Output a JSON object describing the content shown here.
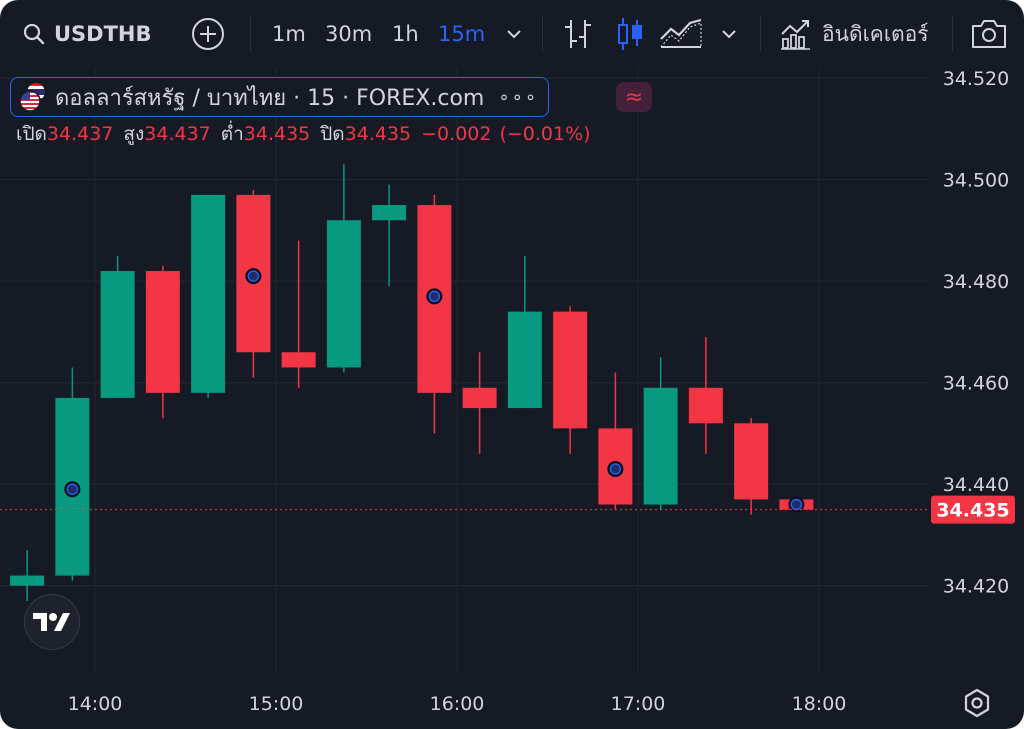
{
  "toolbar": {
    "search_icon": "search-icon",
    "symbol": "USDTHB",
    "add_icon": "plus-circle-icon",
    "intervals": [
      "1m",
      "30m",
      "1h",
      "15m"
    ],
    "active_interval": "15m",
    "chart_type_icons": [
      "bar-chart-icon",
      "candles-icon",
      "area-chart-icon"
    ],
    "dropdown_icon": "chevron-down-icon",
    "indicators_label": "อินดิเคเตอร์",
    "indicators_icon": "indicators-icon",
    "camera_icon": "camera-icon"
  },
  "legend": {
    "title": "ดอลลาร์สหรัฐ / บาทไทย · 15 · FOREX.com",
    "more": "∘∘∘",
    "approx_badge": "≈",
    "open_label": "เปิด",
    "open": "34.437",
    "high_label": "สูง",
    "high": "34.437",
    "low_label": "ต่ำ",
    "low": "34.435",
    "close_label": "ปิด",
    "close": "34.435",
    "change": "−0.002",
    "change_pct": "(−0.01%)"
  },
  "colors": {
    "background": "#161a25",
    "up": "#089981",
    "down": "#f23645",
    "accent": "#2962ff",
    "grid": "#232734",
    "text": "#d1d4dc"
  },
  "chart_data": {
    "type": "candlestick",
    "y_ticks": [
      "34.520",
      "34.500",
      "34.480",
      "34.460",
      "34.440",
      "34.420"
    ],
    "ylim": [
      34.403,
      34.522
    ],
    "x_ticks": [
      "14:00",
      "15:00",
      "16:00",
      "17:00",
      "18:00"
    ],
    "bar_interval_minutes": 15,
    "last_price": "34.435",
    "candles": [
      {
        "t": "13:30",
        "o": 34.42,
        "h": 34.427,
        "l": 34.417,
        "c": 34.422
      },
      {
        "t": "13:45",
        "o": 34.422,
        "h": 34.463,
        "l": 34.421,
        "c": 34.457
      },
      {
        "t": "14:00",
        "o": 34.457,
        "h": 34.485,
        "l": 34.457,
        "c": 34.482
      },
      {
        "t": "14:15",
        "o": 34.482,
        "h": 34.483,
        "l": 34.453,
        "c": 34.458
      },
      {
        "t": "14:30",
        "o": 34.458,
        "h": 34.497,
        "l": 34.457,
        "c": 34.497
      },
      {
        "t": "14:45",
        "o": 34.497,
        "h": 34.498,
        "l": 34.461,
        "c": 34.466
      },
      {
        "t": "15:00",
        "o": 34.466,
        "h": 34.488,
        "l": 34.459,
        "c": 34.463
      },
      {
        "t": "15:15",
        "o": 34.463,
        "h": 34.503,
        "l": 34.462,
        "c": 34.492
      },
      {
        "t": "15:30",
        "o": 34.492,
        "h": 34.499,
        "l": 34.479,
        "c": 34.495
      },
      {
        "t": "15:45",
        "o": 34.495,
        "h": 34.497,
        "l": 34.45,
        "c": 34.458
      },
      {
        "t": "16:00",
        "o": 34.459,
        "h": 34.466,
        "l": 34.446,
        "c": 34.455
      },
      {
        "t": "16:15",
        "o": 34.455,
        "h": 34.485,
        "l": 34.455,
        "c": 34.474
      },
      {
        "t": "16:30",
        "o": 34.474,
        "h": 34.475,
        "l": 34.446,
        "c": 34.451
      },
      {
        "t": "16:45",
        "o": 34.451,
        "h": 34.462,
        "l": 34.435,
        "c": 34.436
      },
      {
        "t": "17:00",
        "o": 34.436,
        "h": 34.465,
        "l": 34.435,
        "c": 34.459
      },
      {
        "t": "17:15",
        "o": 34.459,
        "h": 34.469,
        "l": 34.446,
        "c": 34.452
      },
      {
        "t": "17:30",
        "o": 34.452,
        "h": 34.453,
        "l": 34.434,
        "c": 34.437
      },
      {
        "t": "17:45",
        "o": 34.437,
        "h": 34.437,
        "l": 34.435,
        "c": 34.435
      }
    ],
    "event_markers": [
      {
        "t": "13:45",
        "y": 34.439
      },
      {
        "t": "14:45",
        "y": 34.481
      },
      {
        "t": "15:45",
        "y": 34.477
      },
      {
        "t": "16:45",
        "y": 34.443
      },
      {
        "t": "17:45",
        "y": 34.436
      }
    ]
  }
}
